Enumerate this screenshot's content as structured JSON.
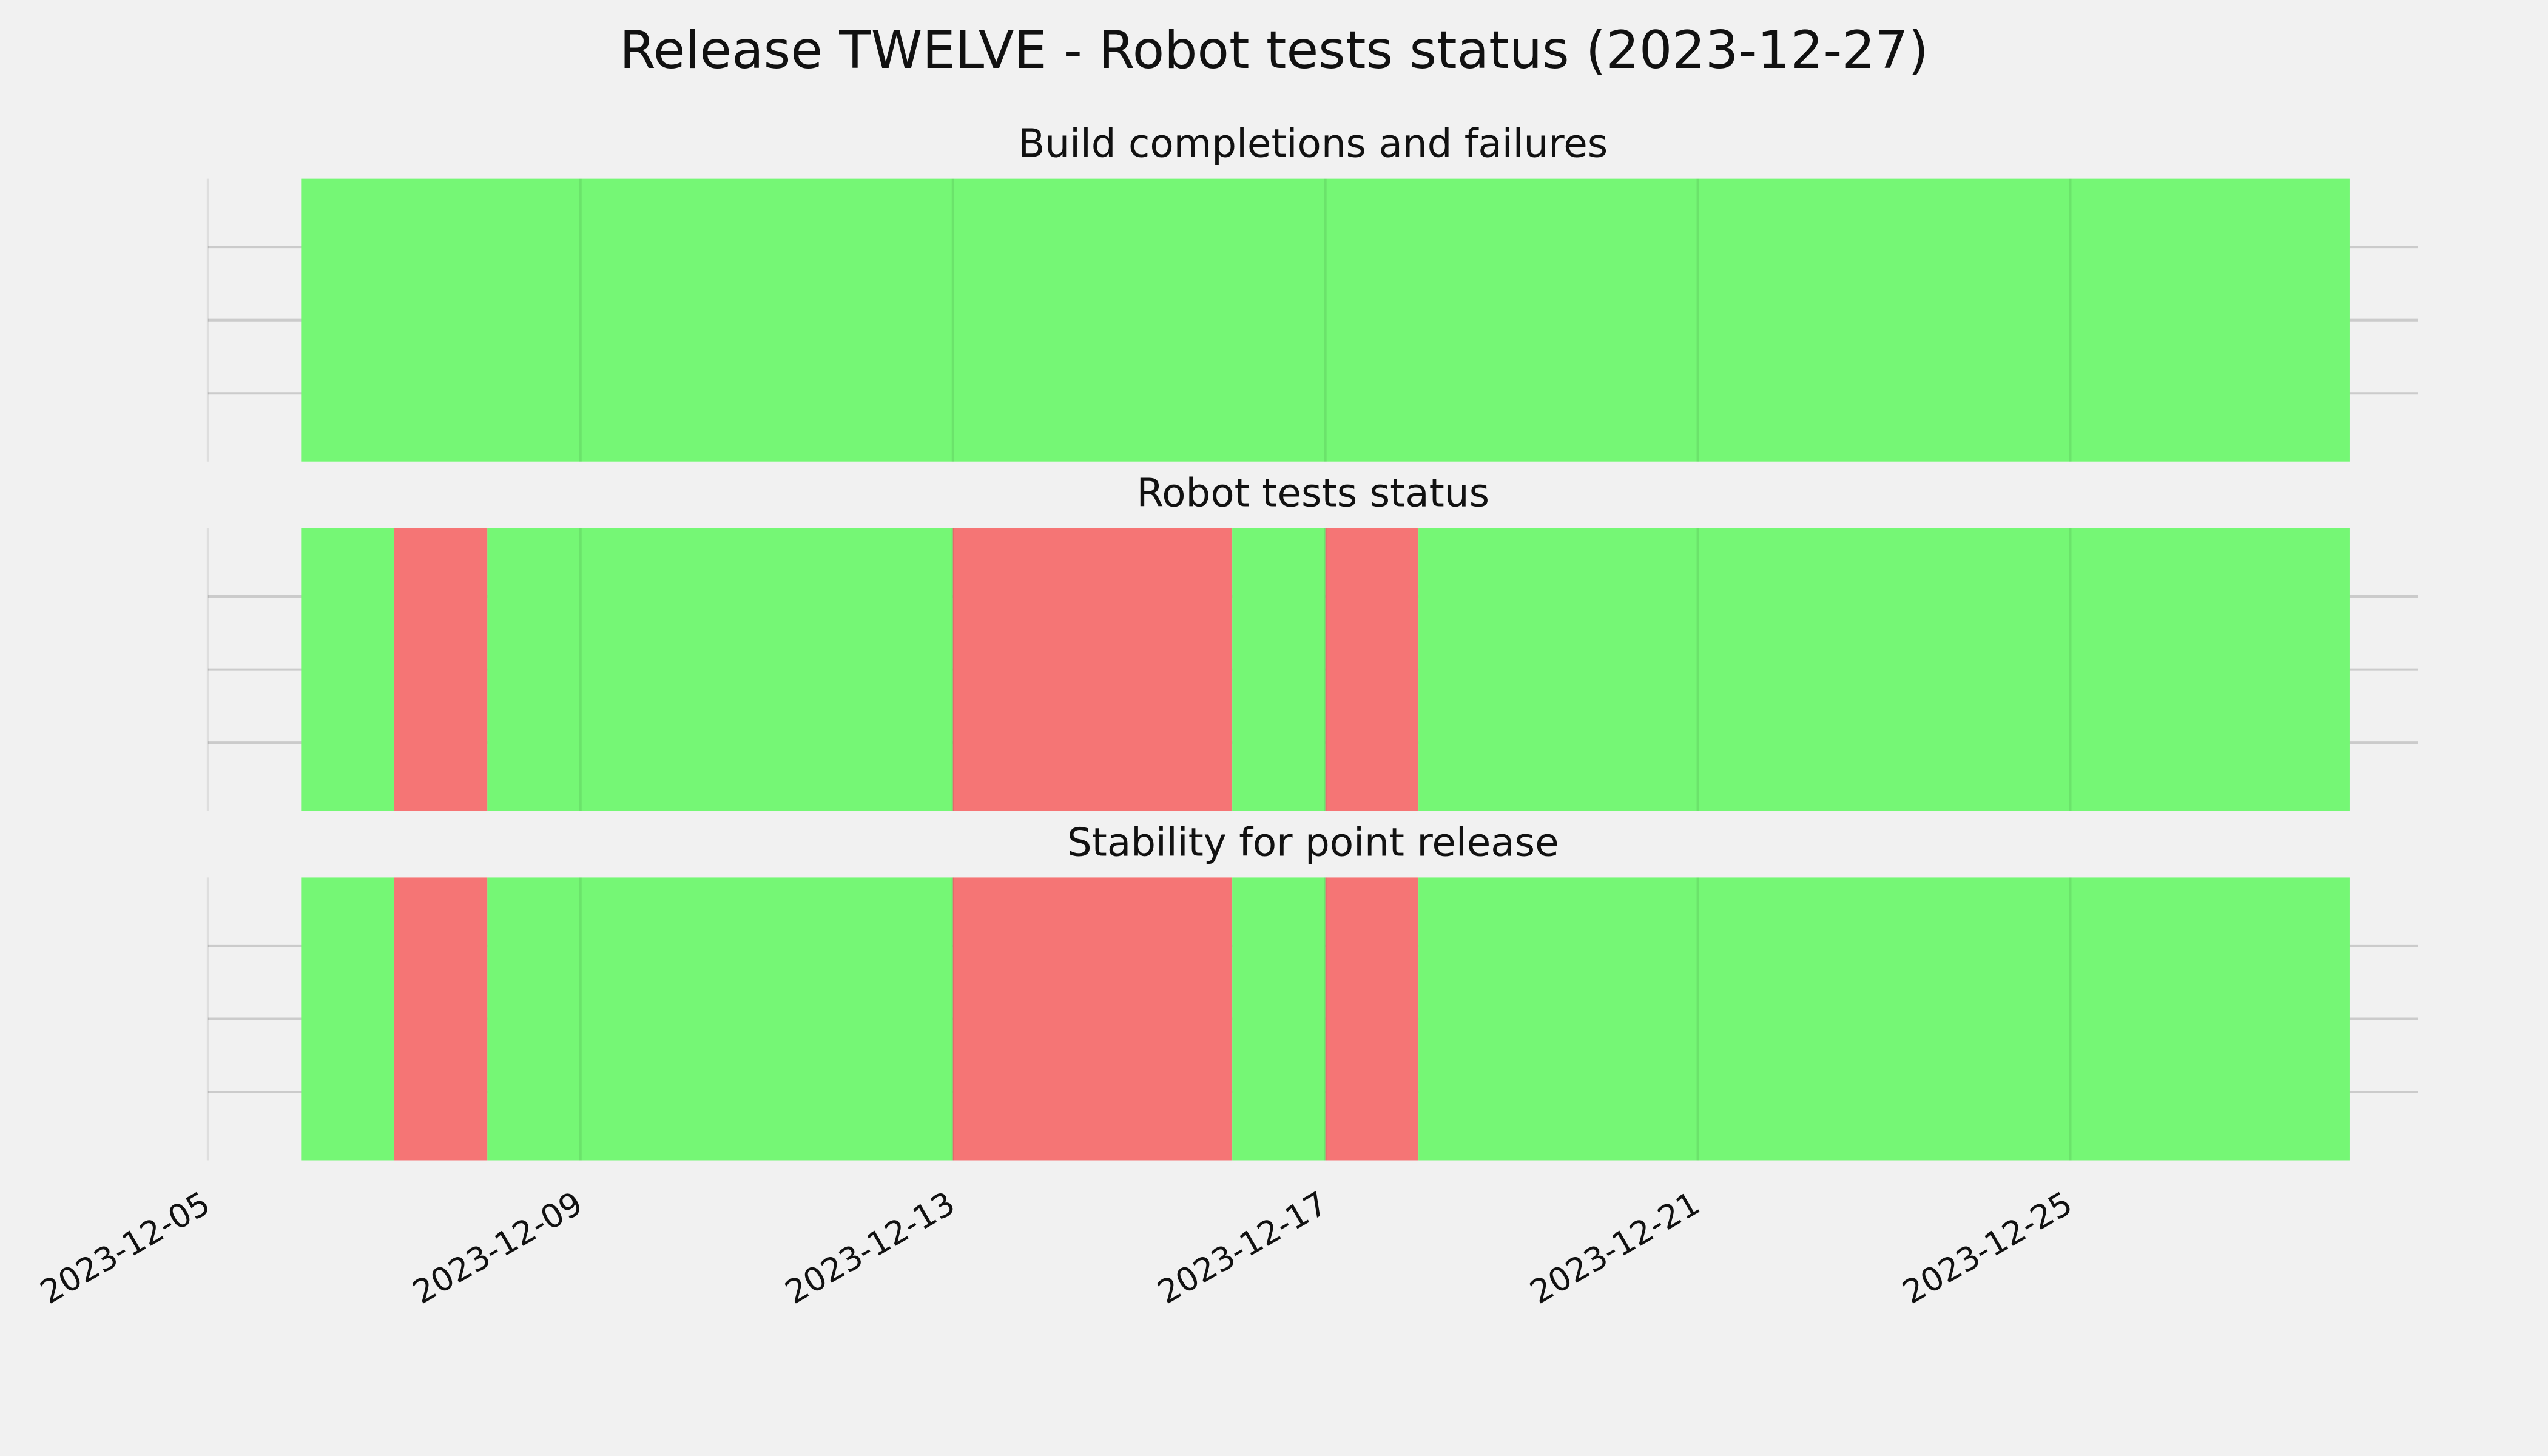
{
  "chart_data": {
    "type": "timeline",
    "title": "Release TWELVE - Robot tests status (2023-12-27)",
    "xlim": [
      "2023-12-05",
      "2023-12-28"
    ],
    "xticks": [
      "2023-12-05",
      "2023-12-09",
      "2023-12-13",
      "2023-12-17",
      "2023-12-21",
      "2023-12-25"
    ],
    "grid": true,
    "panels": [
      {
        "title": "Build completions and failures",
        "segments": [
          {
            "start": "2023-12-06",
            "end": "2023-12-28",
            "color": "#75f775"
          }
        ]
      },
      {
        "title": "Robot tests status",
        "segments": [
          {
            "start": "2023-12-06",
            "end": "2023-12-07",
            "color": "#75f775"
          },
          {
            "start": "2023-12-07",
            "end": "2023-12-08",
            "color": "#f57575"
          },
          {
            "start": "2023-12-08",
            "end": "2023-12-13",
            "color": "#75f775"
          },
          {
            "start": "2023-12-13",
            "end": "2023-12-16",
            "color": "#f57575"
          },
          {
            "start": "2023-12-16",
            "end": "2023-12-17",
            "color": "#75f775"
          },
          {
            "start": "2023-12-17",
            "end": "2023-12-18",
            "color": "#f57575"
          },
          {
            "start": "2023-12-18",
            "end": "2023-12-28",
            "color": "#75f775"
          }
        ]
      },
      {
        "title": "Stability for point release",
        "segments": [
          {
            "start": "2023-12-06",
            "end": "2023-12-07",
            "color": "#75f775"
          },
          {
            "start": "2023-12-07",
            "end": "2023-12-08",
            "color": "#f57575"
          },
          {
            "start": "2023-12-08",
            "end": "2023-12-13",
            "color": "#75f775"
          },
          {
            "start": "2023-12-13",
            "end": "2023-12-16",
            "color": "#f57575"
          },
          {
            "start": "2023-12-16",
            "end": "2023-12-17",
            "color": "#75f775"
          },
          {
            "start": "2023-12-17",
            "end": "2023-12-18",
            "color": "#f57575"
          },
          {
            "start": "2023-12-18",
            "end": "2023-12-28",
            "color": "#75f775"
          }
        ]
      }
    ]
  }
}
